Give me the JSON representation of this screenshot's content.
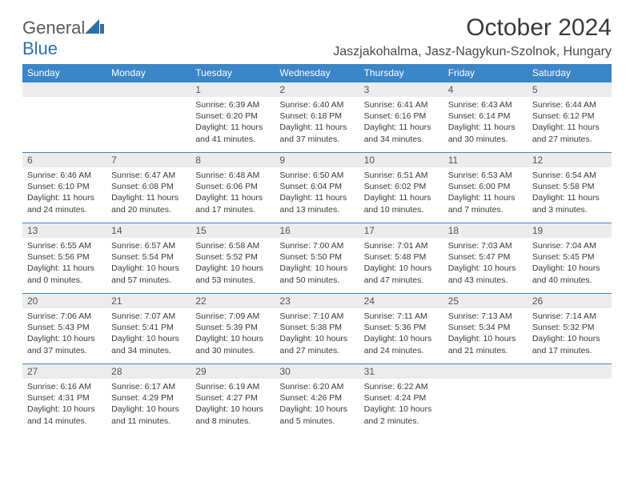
{
  "brand": {
    "name_part1": "General",
    "name_part2": "Blue"
  },
  "title": "October 2024",
  "location": "Jaszjakohalma, Jasz-Nagykun-Szolnok, Hungary",
  "colors": {
    "header_bg": "#3a86c8",
    "header_text": "#ffffff",
    "row_border": "#3a86c8",
    "daynum_bg": "#ececec",
    "text": "#3a3a3a",
    "brand_gray": "#5a5a5a",
    "brand_blue": "#2f6fa8"
  },
  "day_headers": [
    "Sunday",
    "Monday",
    "Tuesday",
    "Wednesday",
    "Thursday",
    "Friday",
    "Saturday"
  ],
  "weeks": [
    [
      null,
      null,
      {
        "n": "1",
        "sr": "6:39 AM",
        "ss": "6:20 PM",
        "dl": "11 hours and 41 minutes."
      },
      {
        "n": "2",
        "sr": "6:40 AM",
        "ss": "6:18 PM",
        "dl": "11 hours and 37 minutes."
      },
      {
        "n": "3",
        "sr": "6:41 AM",
        "ss": "6:16 PM",
        "dl": "11 hours and 34 minutes."
      },
      {
        "n": "4",
        "sr": "6:43 AM",
        "ss": "6:14 PM",
        "dl": "11 hours and 30 minutes."
      },
      {
        "n": "5",
        "sr": "6:44 AM",
        "ss": "6:12 PM",
        "dl": "11 hours and 27 minutes."
      }
    ],
    [
      {
        "n": "6",
        "sr": "6:46 AM",
        "ss": "6:10 PM",
        "dl": "11 hours and 24 minutes."
      },
      {
        "n": "7",
        "sr": "6:47 AM",
        "ss": "6:08 PM",
        "dl": "11 hours and 20 minutes."
      },
      {
        "n": "8",
        "sr": "6:48 AM",
        "ss": "6:06 PM",
        "dl": "11 hours and 17 minutes."
      },
      {
        "n": "9",
        "sr": "6:50 AM",
        "ss": "6:04 PM",
        "dl": "11 hours and 13 minutes."
      },
      {
        "n": "10",
        "sr": "6:51 AM",
        "ss": "6:02 PM",
        "dl": "11 hours and 10 minutes."
      },
      {
        "n": "11",
        "sr": "6:53 AM",
        "ss": "6:00 PM",
        "dl": "11 hours and 7 minutes."
      },
      {
        "n": "12",
        "sr": "6:54 AM",
        "ss": "5:58 PM",
        "dl": "11 hours and 3 minutes."
      }
    ],
    [
      {
        "n": "13",
        "sr": "6:55 AM",
        "ss": "5:56 PM",
        "dl": "11 hours and 0 minutes."
      },
      {
        "n": "14",
        "sr": "6:57 AM",
        "ss": "5:54 PM",
        "dl": "10 hours and 57 minutes."
      },
      {
        "n": "15",
        "sr": "6:58 AM",
        "ss": "5:52 PM",
        "dl": "10 hours and 53 minutes."
      },
      {
        "n": "16",
        "sr": "7:00 AM",
        "ss": "5:50 PM",
        "dl": "10 hours and 50 minutes."
      },
      {
        "n": "17",
        "sr": "7:01 AM",
        "ss": "5:48 PM",
        "dl": "10 hours and 47 minutes."
      },
      {
        "n": "18",
        "sr": "7:03 AM",
        "ss": "5:47 PM",
        "dl": "10 hours and 43 minutes."
      },
      {
        "n": "19",
        "sr": "7:04 AM",
        "ss": "5:45 PM",
        "dl": "10 hours and 40 minutes."
      }
    ],
    [
      {
        "n": "20",
        "sr": "7:06 AM",
        "ss": "5:43 PM",
        "dl": "10 hours and 37 minutes."
      },
      {
        "n": "21",
        "sr": "7:07 AM",
        "ss": "5:41 PM",
        "dl": "10 hours and 34 minutes."
      },
      {
        "n": "22",
        "sr": "7:09 AM",
        "ss": "5:39 PM",
        "dl": "10 hours and 30 minutes."
      },
      {
        "n": "23",
        "sr": "7:10 AM",
        "ss": "5:38 PM",
        "dl": "10 hours and 27 minutes."
      },
      {
        "n": "24",
        "sr": "7:11 AM",
        "ss": "5:36 PM",
        "dl": "10 hours and 24 minutes."
      },
      {
        "n": "25",
        "sr": "7:13 AM",
        "ss": "5:34 PM",
        "dl": "10 hours and 21 minutes."
      },
      {
        "n": "26",
        "sr": "7:14 AM",
        "ss": "5:32 PM",
        "dl": "10 hours and 17 minutes."
      }
    ],
    [
      {
        "n": "27",
        "sr": "6:16 AM",
        "ss": "4:31 PM",
        "dl": "10 hours and 14 minutes."
      },
      {
        "n": "28",
        "sr": "6:17 AM",
        "ss": "4:29 PM",
        "dl": "10 hours and 11 minutes."
      },
      {
        "n": "29",
        "sr": "6:19 AM",
        "ss": "4:27 PM",
        "dl": "10 hours and 8 minutes."
      },
      {
        "n": "30",
        "sr": "6:20 AM",
        "ss": "4:26 PM",
        "dl": "10 hours and 5 minutes."
      },
      {
        "n": "31",
        "sr": "6:22 AM",
        "ss": "4:24 PM",
        "dl": "10 hours and 2 minutes."
      },
      null,
      null
    ]
  ],
  "labels": {
    "sunrise": "Sunrise:",
    "sunset": "Sunset:",
    "daylight": "Daylight:"
  }
}
